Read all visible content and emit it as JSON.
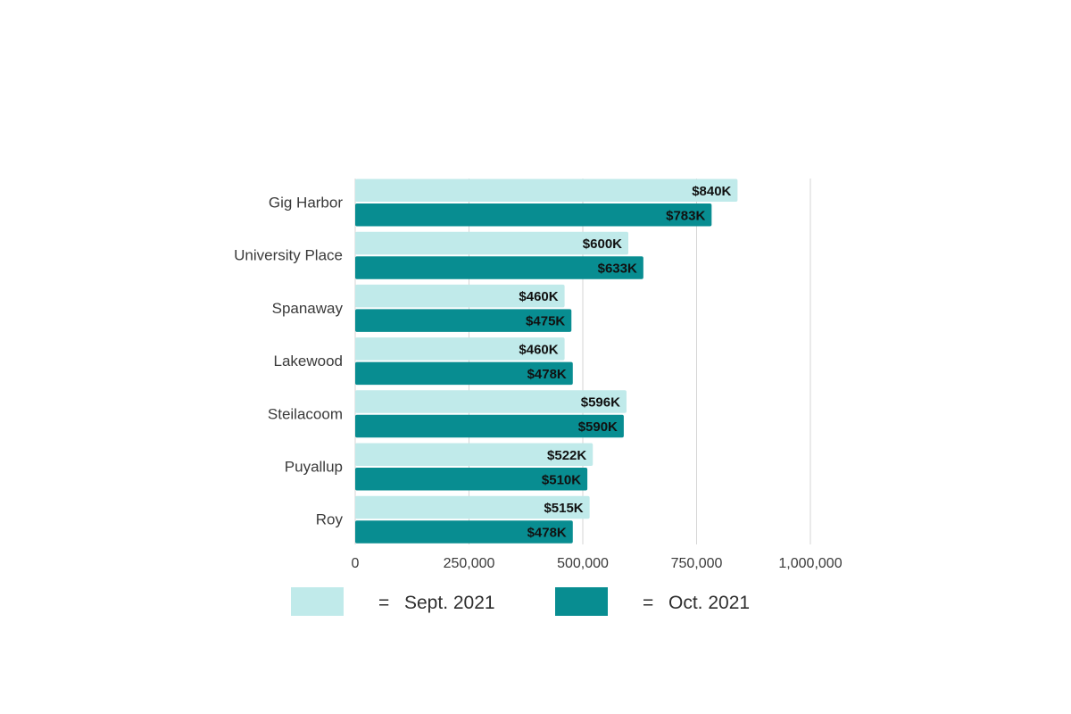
{
  "chart_data": {
    "type": "bar",
    "orientation": "horizontal",
    "categories": [
      "Gig Harbor",
      "University Place",
      "Spanaway",
      "Lakewood",
      "Steilacoom",
      "Puyallup",
      "Roy"
    ],
    "series": [
      {
        "name": "Sept. 2021",
        "color": "#c0eaea",
        "values": [
          840000,
          600000,
          460000,
          460000,
          596000,
          522000,
          515000
        ],
        "labels": [
          "$840K",
          "$600K",
          "$460K",
          "$460K",
          "$596K",
          "$522K",
          "$515K"
        ]
      },
      {
        "name": "Oct. 2021",
        "color": "#088d91",
        "values": [
          783000,
          633000,
          475000,
          478000,
          590000,
          510000,
          478000
        ],
        "labels": [
          "$783K",
          "$633K",
          "$475K",
          "$478K",
          "$590K",
          "$510K",
          "$478K"
        ]
      }
    ],
    "x_ticks": [
      0,
      250000,
      500000,
      750000,
      1000000
    ],
    "x_tick_labels": [
      "0",
      "250,000",
      "500,000",
      "750,000",
      "1,000,000"
    ],
    "xlim": [
      0,
      1000000
    ],
    "title": "",
    "xlabel": "",
    "ylabel": "",
    "grid": "vertical",
    "legend_position": "bottom",
    "legend_separator": "="
  }
}
